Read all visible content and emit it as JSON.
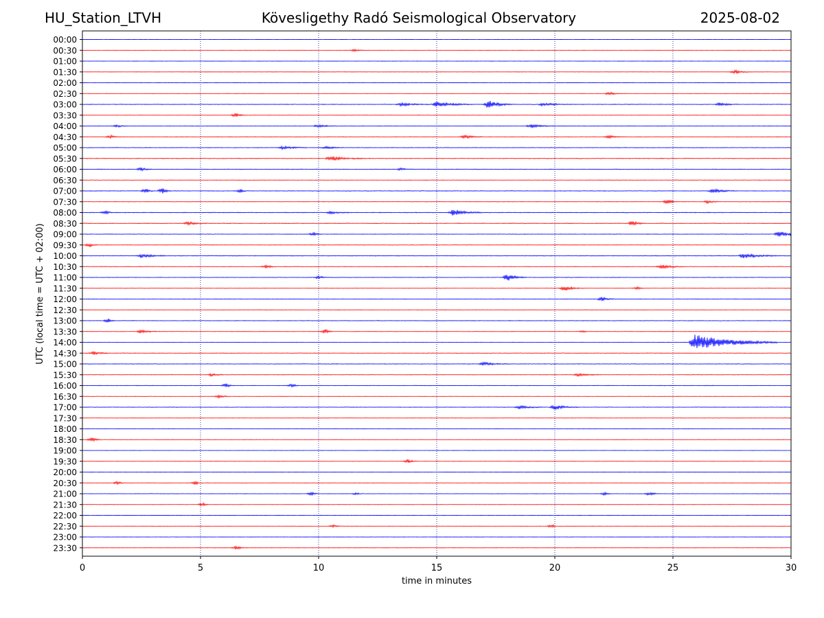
{
  "header": {
    "station": "HU_Station_LTVH",
    "observatory": "Kövesligethy Radó Seismological Observatory",
    "date": "2025-08-02"
  },
  "colors": {
    "even_trace": "#0000ff",
    "odd_trace": "#ff0000",
    "grid": "#000080"
  },
  "chart_data": {
    "type": "line",
    "xlabel": "time in minutes",
    "ylabel": "UTC (local time = UTC + 02:00)",
    "xlim": [
      0,
      30
    ],
    "xticks": [
      0,
      5,
      10,
      15,
      20,
      25,
      30
    ],
    "xgrid": true,
    "rows": [
      "00:00",
      "00:30",
      "01:00",
      "01:30",
      "02:00",
      "02:30",
      "03:00",
      "03:30",
      "04:00",
      "04:30",
      "05:00",
      "05:30",
      "06:00",
      "06:30",
      "07:00",
      "07:30",
      "08:00",
      "08:30",
      "09:00",
      "09:30",
      "10:00",
      "10:30",
      "11:00",
      "11:30",
      "12:00",
      "12:30",
      "13:00",
      "13:30",
      "14:00",
      "14:30",
      "15:00",
      "15:30",
      "16:00",
      "16:30",
      "17:00",
      "17:30",
      "18:00",
      "18:30",
      "19:00",
      "19:30",
      "20:00",
      "20:30",
      "21:00",
      "21:30",
      "22:00",
      "22:30",
      "23:00",
      "23:30"
    ],
    "noise_level": [
      0.12,
      0.18,
      0.1,
      0.25,
      0.12,
      0.28,
      0.5,
      0.35,
      0.4,
      0.45,
      0.5,
      0.6,
      0.55,
      0.4,
      0.55,
      0.45,
      0.6,
      0.6,
      0.45,
      0.45,
      0.6,
      0.45,
      0.45,
      0.4,
      0.4,
      0.4,
      0.5,
      0.4,
      0.35,
      0.5,
      0.5,
      0.4,
      0.45,
      0.35,
      0.45,
      0.35,
      0.35,
      0.35,
      0.3,
      0.3,
      0.15,
      0.3,
      0.3,
      0.3,
      0.12,
      0.25,
      0.12,
      0.2
    ],
    "bursts": [
      {
        "row": "00:30",
        "minute": 11.5,
        "amplitude": 2,
        "duration": 0.6
      },
      {
        "row": "01:30",
        "minute": 27.6,
        "amplitude": 3,
        "duration": 0.8
      },
      {
        "row": "02:30",
        "minute": 22.3,
        "amplitude": 2.5,
        "duration": 0.6
      },
      {
        "row": "03:00",
        "minute": 13.5,
        "amplitude": 2.5,
        "duration": 1.2
      },
      {
        "row": "03:00",
        "minute": 15,
        "amplitude": 4,
        "duration": 1.5
      },
      {
        "row": "03:00",
        "minute": 17.2,
        "amplitude": 6,
        "duration": 1
      },
      {
        "row": "03:00",
        "minute": 19.5,
        "amplitude": 2.5,
        "duration": 1.2
      },
      {
        "row": "03:00",
        "minute": 27,
        "amplitude": 2.5,
        "duration": 0.8
      },
      {
        "row": "03:30",
        "minute": 6.5,
        "amplitude": 3,
        "duration": 0.4
      },
      {
        "row": "04:00",
        "minute": 1.5,
        "amplitude": 2,
        "duration": 0.4
      },
      {
        "row": "04:00",
        "minute": 10,
        "amplitude": 2.5,
        "duration": 0.8
      },
      {
        "row": "04:00",
        "minute": 19,
        "amplitude": 3,
        "duration": 1
      },
      {
        "row": "04:30",
        "minute": 1.2,
        "amplitude": 2.5,
        "duration": 0.3
      },
      {
        "row": "04:30",
        "minute": 16.2,
        "amplitude": 2.5,
        "duration": 0.8
      },
      {
        "row": "04:30",
        "minute": 22.3,
        "amplitude": 2,
        "duration": 0.6
      },
      {
        "row": "05:00",
        "minute": 8.5,
        "amplitude": 2.5,
        "duration": 1
      },
      {
        "row": "05:00",
        "minute": 10.3,
        "amplitude": 2,
        "duration": 0.8
      },
      {
        "row": "05:30",
        "minute": 10.5,
        "amplitude": 3,
        "duration": 1.5
      },
      {
        "row": "06:00",
        "minute": 2.5,
        "amplitude": 2.5,
        "duration": 0.5
      },
      {
        "row": "06:00",
        "minute": 13.5,
        "amplitude": 2,
        "duration": 0.4
      },
      {
        "row": "07:00",
        "minute": 2.7,
        "amplitude": 3.5,
        "duration": 0.3
      },
      {
        "row": "07:00",
        "minute": 3.4,
        "amplitude": 4,
        "duration": 0.3
      },
      {
        "row": "07:00",
        "minute": 6.7,
        "amplitude": 2.5,
        "duration": 0.3
      },
      {
        "row": "07:00",
        "minute": 26.7,
        "amplitude": 3,
        "duration": 1
      },
      {
        "row": "07:30",
        "minute": 24.8,
        "amplitude": 3.5,
        "duration": 0.4
      },
      {
        "row": "07:30",
        "minute": 26.5,
        "amplitude": 2.5,
        "duration": 0.5
      },
      {
        "row": "08:00",
        "minute": 1,
        "amplitude": 2.5,
        "duration": 0.3
      },
      {
        "row": "08:00",
        "minute": 10.5,
        "amplitude": 2,
        "duration": 0.8
      },
      {
        "row": "08:00",
        "minute": 15.7,
        "amplitude": 5,
        "duration": 1.2
      },
      {
        "row": "08:30",
        "minute": 4.5,
        "amplitude": 2.5,
        "duration": 0.8
      },
      {
        "row": "08:30",
        "minute": 23.3,
        "amplitude": 4,
        "duration": 0.5
      },
      {
        "row": "09:00",
        "minute": 9.8,
        "amplitude": 3,
        "duration": 0.3
      },
      {
        "row": "09:00",
        "minute": 29.5,
        "amplitude": 5,
        "duration": 1
      },
      {
        "row": "09:30",
        "minute": 0.3,
        "amplitude": 3,
        "duration": 0.3
      },
      {
        "row": "10:00",
        "minute": 2.5,
        "amplitude": 3,
        "duration": 1
      },
      {
        "row": "10:00",
        "minute": 28,
        "amplitude": 3.5,
        "duration": 1.5
      },
      {
        "row": "10:30",
        "minute": 7.8,
        "amplitude": 2.5,
        "duration": 0.4
      },
      {
        "row": "10:30",
        "minute": 24.5,
        "amplitude": 3,
        "duration": 1
      },
      {
        "row": "11:00",
        "minute": 10,
        "amplitude": 2.5,
        "duration": 0.4
      },
      {
        "row": "11:00",
        "minute": 18,
        "amplitude": 5,
        "duration": 0.8
      },
      {
        "row": "11:30",
        "minute": 20.4,
        "amplitude": 4,
        "duration": 0.8
      },
      {
        "row": "11:30",
        "minute": 23.5,
        "amplitude": 2,
        "duration": 0.3
      },
      {
        "row": "12:00",
        "minute": 22,
        "amplitude": 3,
        "duration": 0.5
      },
      {
        "row": "13:00",
        "minute": 1.1,
        "amplitude": 3,
        "duration": 0.3
      },
      {
        "row": "13:30",
        "minute": 2.5,
        "amplitude": 2.5,
        "duration": 0.8
      },
      {
        "row": "13:30",
        "minute": 10.3,
        "amplitude": 3.5,
        "duration": 0.3
      },
      {
        "row": "13:30",
        "minute": 21.2,
        "amplitude": 2,
        "duration": 0.2
      },
      {
        "row": "14:00",
        "minute": 25.9,
        "amplitude": 12,
        "duration": 3.5
      },
      {
        "row": "14:30",
        "minute": 0.5,
        "amplitude": 2.5,
        "duration": 0.6
      },
      {
        "row": "15:00",
        "minute": 17,
        "amplitude": 2.5,
        "duration": 1
      },
      {
        "row": "15:30",
        "minute": 5.5,
        "amplitude": 2.5,
        "duration": 0.5
      },
      {
        "row": "15:30",
        "minute": 21,
        "amplitude": 2.5,
        "duration": 1
      },
      {
        "row": "16:00",
        "minute": 6.1,
        "amplitude": 3,
        "duration": 0.3
      },
      {
        "row": "16:00",
        "minute": 8.9,
        "amplitude": 2.5,
        "duration": 0.3
      },
      {
        "row": "16:30",
        "minute": 5.8,
        "amplitude": 2.5,
        "duration": 0.5
      },
      {
        "row": "17:00",
        "minute": 18.5,
        "amplitude": 2.5,
        "duration": 1
      },
      {
        "row": "17:00",
        "minute": 20,
        "amplitude": 3.5,
        "duration": 1
      },
      {
        "row": "18:30",
        "minute": 0.4,
        "amplitude": 3.5,
        "duration": 0.4
      },
      {
        "row": "19:30",
        "minute": 13.8,
        "amplitude": 3,
        "duration": 0.4
      },
      {
        "row": "20:30",
        "minute": 1.5,
        "amplitude": 2.5,
        "duration": 0.3
      },
      {
        "row": "20:30",
        "minute": 4.8,
        "amplitude": 2.5,
        "duration": 0.3
      },
      {
        "row": "21:00",
        "minute": 9.7,
        "amplitude": 3,
        "duration": 0.3
      },
      {
        "row": "21:00",
        "minute": 11.6,
        "amplitude": 2,
        "duration": 0.3
      },
      {
        "row": "21:00",
        "minute": 22.1,
        "amplitude": 2.5,
        "duration": 0.3
      },
      {
        "row": "21:00",
        "minute": 24,
        "amplitude": 2.5,
        "duration": 0.5
      },
      {
        "row": "21:30",
        "minute": 5.1,
        "amplitude": 2.5,
        "duration": 0.3
      },
      {
        "row": "22:30",
        "minute": 10.6,
        "amplitude": 2,
        "duration": 0.5
      },
      {
        "row": "22:30",
        "minute": 19.9,
        "amplitude": 3,
        "duration": 0.2
      },
      {
        "row": "23:30",
        "minute": 6.5,
        "amplitude": 2.5,
        "duration": 0.6
      }
    ]
  }
}
